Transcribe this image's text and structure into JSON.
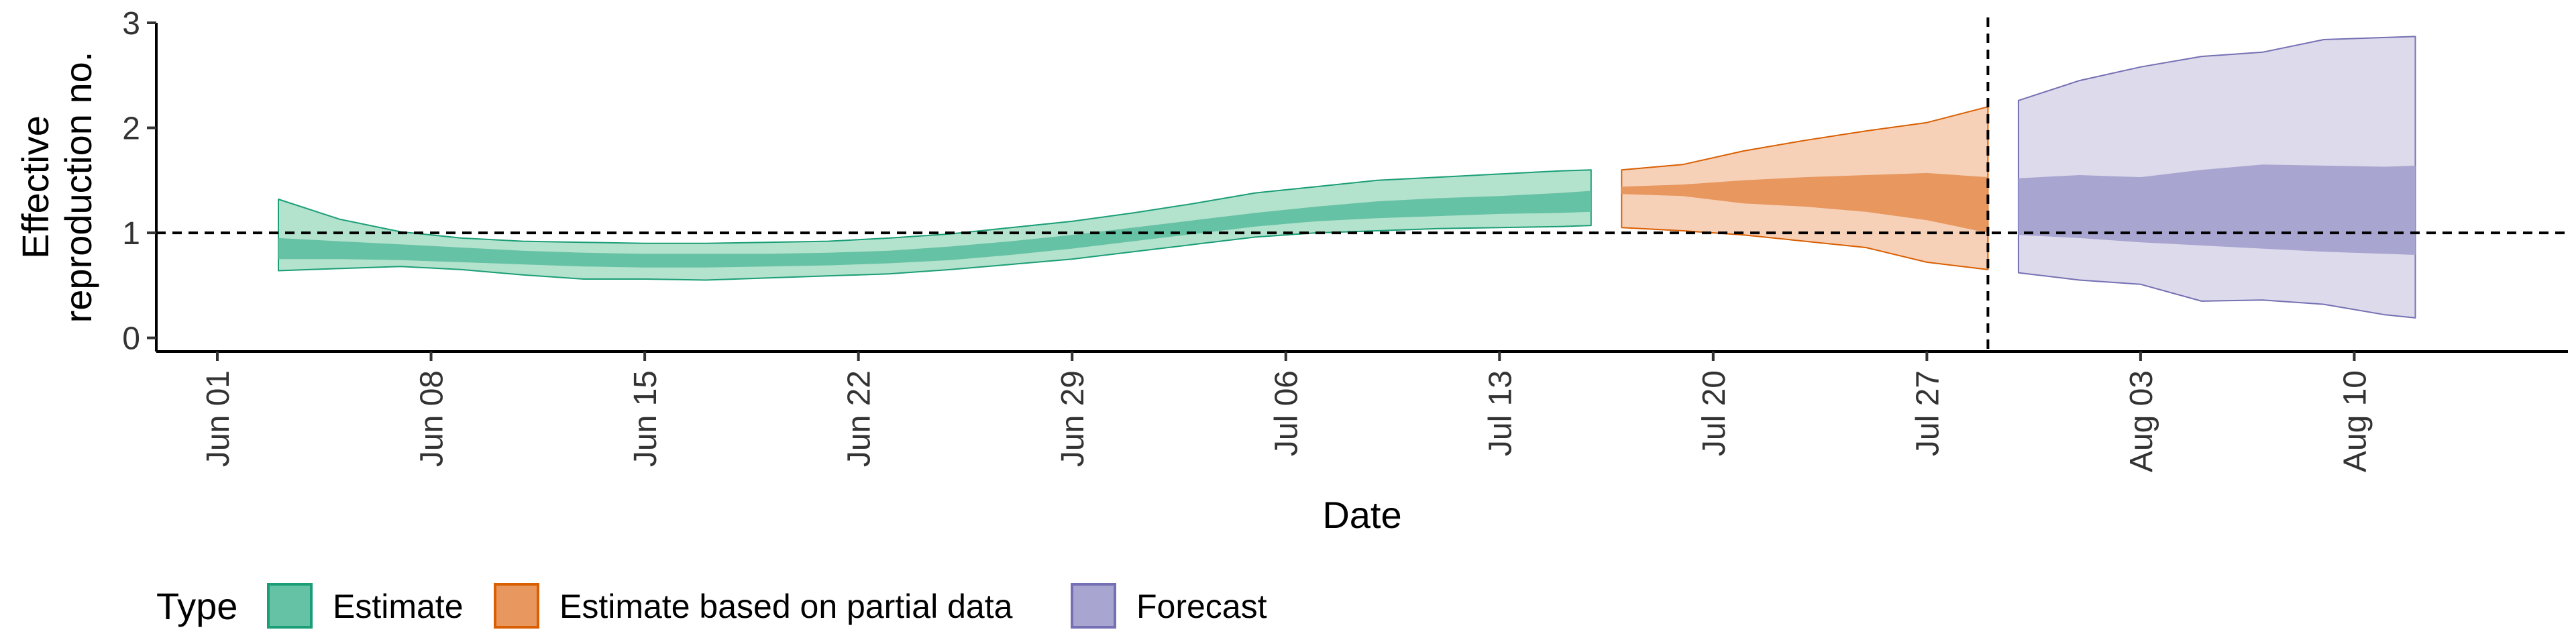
{
  "chart_data": {
    "type": "area",
    "xlabel": "Date",
    "ylabel_lines": [
      "Effective",
      "reproduction no."
    ],
    "x_range": [
      "2020-05-30",
      "2020-08-17"
    ],
    "ylim": [
      -0.13,
      3.0
    ],
    "y_ticks": [
      0,
      1,
      2,
      3
    ],
    "x_ticks": [
      {
        "date": "2020-06-01",
        "label": "Jun 01"
      },
      {
        "date": "2020-06-08",
        "label": "Jun 08"
      },
      {
        "date": "2020-06-15",
        "label": "Jun 15"
      },
      {
        "date": "2020-06-22",
        "label": "Jun 22"
      },
      {
        "date": "2020-06-29",
        "label": "Jun 29"
      },
      {
        "date": "2020-07-06",
        "label": "Jul 06"
      },
      {
        "date": "2020-07-13",
        "label": "Jul 13"
      },
      {
        "date": "2020-07-20",
        "label": "Jul 20"
      },
      {
        "date": "2020-07-27",
        "label": "Jul 27"
      },
      {
        "date": "2020-08-03",
        "label": "Aug 03"
      },
      {
        "date": "2020-08-10",
        "label": "Aug 10"
      }
    ],
    "reference_line_y": 1,
    "vertical_line_x": "2020-07-29",
    "grid": false,
    "legend": {
      "title": "Type",
      "placement": "bottom-left",
      "entries": [
        "Estimate",
        "Estimate based on partial data",
        "Forecast"
      ]
    },
    "series": [
      {
        "name": "Estimate",
        "fill_outer": "#b3e2cd",
        "fill_inner": "#66c2a5",
        "stroke": "#1b9e77",
        "x": [
          "2020-06-03",
          "2020-06-05",
          "2020-06-07",
          "2020-06-09",
          "2020-06-11",
          "2020-06-13",
          "2020-06-15",
          "2020-06-17",
          "2020-06-19",
          "2020-06-21",
          "2020-06-23",
          "2020-06-25",
          "2020-06-27",
          "2020-06-29",
          "2020-07-01",
          "2020-07-03",
          "2020-07-05",
          "2020-07-07",
          "2020-07-09",
          "2020-07-11",
          "2020-07-13",
          "2020-07-15",
          "2020-07-16"
        ],
        "outer_upper": [
          1.32,
          1.13,
          1.01,
          0.95,
          0.92,
          0.91,
          0.9,
          0.9,
          0.91,
          0.92,
          0.95,
          0.99,
          1.05,
          1.11,
          1.19,
          1.28,
          1.38,
          1.44,
          1.5,
          1.53,
          1.56,
          1.59,
          1.6
        ],
        "inner_upper": [
          0.95,
          0.92,
          0.89,
          0.86,
          0.83,
          0.81,
          0.8,
          0.8,
          0.8,
          0.81,
          0.83,
          0.87,
          0.92,
          0.98,
          1.05,
          1.12,
          1.19,
          1.25,
          1.3,
          1.33,
          1.35,
          1.38,
          1.4
        ],
        "inner_lower": [
          0.75,
          0.75,
          0.74,
          0.72,
          0.7,
          0.68,
          0.67,
          0.67,
          0.68,
          0.69,
          0.71,
          0.74,
          0.79,
          0.85,
          0.92,
          0.99,
          1.06,
          1.11,
          1.14,
          1.16,
          1.18,
          1.19,
          1.2
        ],
        "outer_lower": [
          0.64,
          0.66,
          0.68,
          0.65,
          0.6,
          0.56,
          0.56,
          0.55,
          0.57,
          0.59,
          0.61,
          0.65,
          0.7,
          0.75,
          0.82,
          0.89,
          0.96,
          1.0,
          1.02,
          1.04,
          1.05,
          1.06,
          1.07
        ]
      },
      {
        "name": "Estimate based on partial data",
        "fill_outer": "#f6d1b8",
        "fill_inner": "#e8975f",
        "stroke": "#d95f02",
        "x": [
          "2020-07-17",
          "2020-07-19",
          "2020-07-21",
          "2020-07-23",
          "2020-07-25",
          "2020-07-27",
          "2020-07-29"
        ],
        "outer_upper": [
          1.6,
          1.65,
          1.78,
          1.88,
          1.97,
          2.05,
          2.2
        ],
        "inner_upper": [
          1.44,
          1.46,
          1.5,
          1.53,
          1.55,
          1.57,
          1.53
        ],
        "inner_lower": [
          1.37,
          1.35,
          1.28,
          1.25,
          1.2,
          1.12,
          1.0
        ],
        "outer_lower": [
          1.05,
          1.02,
          0.98,
          0.92,
          0.86,
          0.72,
          0.65
        ]
      },
      {
        "name": "Forecast",
        "fill_outer": "#dcdaeb",
        "fill_inner": "#a8a5d0",
        "stroke": "#7570b3",
        "x": [
          "2020-07-30",
          "2020-08-01",
          "2020-08-03",
          "2020-08-05",
          "2020-08-07",
          "2020-08-09",
          "2020-08-11",
          "2020-08-12"
        ],
        "outer_upper": [
          2.26,
          2.45,
          2.58,
          2.68,
          2.72,
          2.84,
          2.86,
          2.87
        ],
        "inner_upper": [
          1.52,
          1.55,
          1.53,
          1.6,
          1.65,
          1.64,
          1.63,
          1.64
        ],
        "inner_lower": [
          0.98,
          0.95,
          0.91,
          0.88,
          0.85,
          0.82,
          0.8,
          0.79
        ],
        "outer_lower": [
          0.62,
          0.55,
          0.51,
          0.35,
          0.36,
          0.32,
          0.22,
          0.19
        ]
      }
    ]
  }
}
